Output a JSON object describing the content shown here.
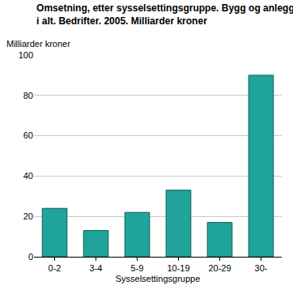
{
  "chart_data": {
    "type": "bar",
    "title": "Omsetning, etter sysselsettingsgruppe. Bygg og anlegg\ni alt. Bedrifter. 2005. Milliarder kroner",
    "y_label": "Milliarder kroner",
    "x_label": "Sysselsettingsgruppe",
    "categories": [
      "0-2",
      "3-4",
      "5-9",
      "10-19",
      "20-29",
      "30-"
    ],
    "values": [
      24,
      13,
      22,
      33,
      17,
      90
    ],
    "color": "#1fa39a",
    "ylim": [
      0,
      100
    ],
    "yticks": [
      0,
      20,
      40,
      60,
      80,
      100
    ],
    "grid": true
  }
}
